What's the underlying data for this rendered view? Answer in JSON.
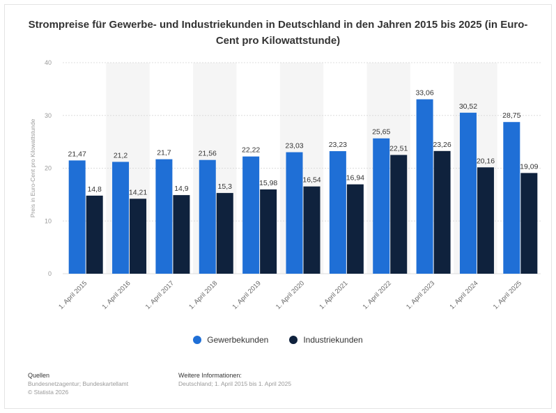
{
  "chart_data": {
    "type": "bar",
    "title": "Strompreise für Gewerbe- und Industriekunden in Deutschland in den Jahren 2015 bis 2025 (in Euro-Cent pro Kilowattstunde)",
    "ylabel": "Preis in Euro-Cent pro Kilowattstunde",
    "xlabel": "",
    "ylim": [
      0,
      40
    ],
    "yticks": [
      0,
      10,
      20,
      30,
      40
    ],
    "grid": true,
    "legend_position": "bottom",
    "categories": [
      "1. April 2015",
      "1. April 2016",
      "1. April 2017",
      "1. April 2018",
      "1. April 2019",
      "1. April 2020",
      "1. April 2021",
      "1. April 2022",
      "1. April 2023",
      "1. April 2024",
      "1. April 2025"
    ],
    "series": [
      {
        "name": "Gewerbekunden",
        "color": "#1f6fd6",
        "values": [
          21.47,
          21.2,
          21.7,
          21.56,
          22.22,
          23.03,
          23.23,
          25.65,
          33.06,
          30.52,
          28.75
        ],
        "labels": [
          "21,47",
          "21,2",
          "21,7",
          "21,56",
          "22,22",
          "23,03",
          "23,23",
          "25,65",
          "33,06",
          "30,52",
          "28,75"
        ]
      },
      {
        "name": "Industriekunden",
        "color": "#0f223d",
        "values": [
          14.8,
          14.21,
          14.9,
          15.3,
          15.98,
          16.54,
          16.94,
          22.51,
          23.26,
          20.16,
          19.09
        ],
        "labels": [
          "14,8",
          "14,21",
          "14,9",
          "15,3",
          "15,98",
          "16,54",
          "16,94",
          "22,51",
          "23,26",
          "20,16",
          "19,09"
        ]
      }
    ]
  },
  "footer": {
    "sources_heading": "Quellen",
    "sources_line1": "Bundesnetzagentur; Bundeskartellamt",
    "sources_line2": "© Statista 2026",
    "info_heading": "Weitere Informationen:",
    "info_text": "Deutschland; 1. April 2015 bis 1. April 2025"
  }
}
